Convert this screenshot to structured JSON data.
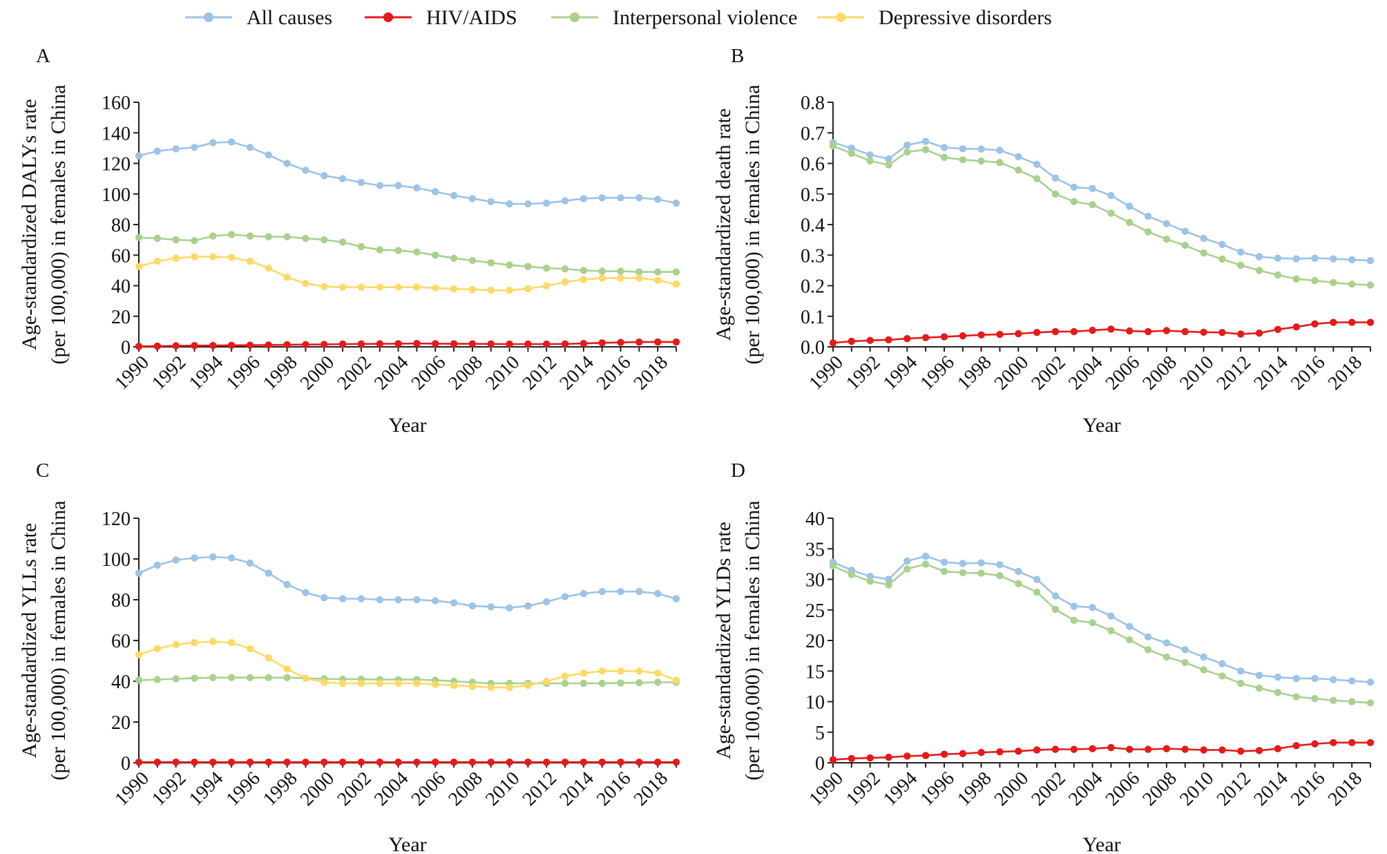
{
  "legend": [
    {
      "name": "All causes",
      "color": "#9dc3e6"
    },
    {
      "name": "HIV/AIDS",
      "color": "#e41a1c"
    },
    {
      "name": "Interpersonal violence",
      "color": "#a9d18e"
    },
    {
      "name": "Depressive disorders",
      "color": "#ffd966"
    }
  ],
  "chart_data": [
    {
      "panel": "A",
      "type": "line",
      "xlabel": "Year",
      "ylabel": [
        "Age-standardized DALYs rate",
        "(per 100,000) in females in China"
      ],
      "ylim": [
        0,
        160
      ],
      "ytick_step": 20,
      "ytick_decimals": 0,
      "x": [
        1990,
        1991,
        1992,
        1993,
        1994,
        1995,
        1996,
        1997,
        1998,
        1999,
        2000,
        2001,
        2002,
        2003,
        2004,
        2005,
        2006,
        2007,
        2008,
        2009,
        2010,
        2011,
        2012,
        2013,
        2014,
        2015,
        2016,
        2017,
        2018,
        2019
      ],
      "xtick_labels": [
        "1990",
        "1992",
        "1994",
        "1996",
        "1998",
        "2000",
        "2002",
        "2004",
        "2006",
        "2008",
        "2010",
        "2012",
        "2014",
        "2016",
        "2018"
      ],
      "series": [
        {
          "name": "All causes",
          "values": [
            125,
            128,
            129.5,
            130.5,
            133.5,
            134,
            130.5,
            125.5,
            120,
            115.5,
            112,
            110,
            107.5,
            105.5,
            105.5,
            104,
            101.5,
            99,
            97,
            95,
            93.5,
            93.5,
            94,
            95.5,
            97,
            97.5,
            97.5,
            97.5,
            96.5,
            94
          ]
        },
        {
          "name": "HIV/AIDS",
          "values": [
            0.3,
            0.5,
            0.7,
            0.8,
            0.9,
            1.0,
            1.1,
            1.2,
            1.4,
            1.5,
            1.6,
            1.8,
            1.9,
            2.0,
            2.1,
            2.2,
            2.1,
            2.0,
            2.0,
            1.9,
            1.8,
            1.8,
            1.8,
            1.9,
            2.2,
            2.6,
            2.9,
            3.1,
            3.2,
            3.2
          ]
        },
        {
          "name": "Interpersonal violence",
          "values": [
            71.5,
            71,
            70,
            69.5,
            72.5,
            73.5,
            72.5,
            72,
            72,
            71,
            70,
            68.5,
            65.5,
            63.5,
            63,
            62,
            60,
            58,
            56.5,
            55,
            53.5,
            52.5,
            51.5,
            51,
            50,
            49.5,
            49.5,
            49,
            49,
            49
          ]
        },
        {
          "name": "Depressive disorders",
          "values": [
            52.5,
            56,
            58,
            59,
            59,
            58.5,
            56,
            51.5,
            45.5,
            41.5,
            39.5,
            39,
            39,
            39,
            39,
            39,
            38.5,
            38,
            37.5,
            37,
            37,
            38,
            40,
            42.5,
            44,
            45,
            45,
            45,
            43.5,
            41
          ]
        }
      ]
    },
    {
      "panel": "B",
      "type": "line",
      "xlabel": "Year",
      "ylabel": [
        "Age-standardized death rate",
        "(per 100,000) in females in China"
      ],
      "ylim": [
        0,
        0.8
      ],
      "ytick_step": 0.1,
      "ytick_decimals": 1,
      "x": [
        1990,
        1991,
        1992,
        1993,
        1994,
        1995,
        1996,
        1997,
        1998,
        1999,
        2000,
        2001,
        2002,
        2003,
        2004,
        2005,
        2006,
        2007,
        2008,
        2009,
        2010,
        2011,
        2012,
        2013,
        2014,
        2015,
        2016,
        2017,
        2018,
        2019
      ],
      "xtick_labels": [
        "1990",
        "1992",
        "1994",
        "1996",
        "1998",
        "2000",
        "2002",
        "2004",
        "2006",
        "2008",
        "2010",
        "2012",
        "2014",
        "2016",
        "2018"
      ],
      "series": [
        {
          "name": "All causes",
          "values": [
            0.668,
            0.65,
            0.628,
            0.615,
            0.66,
            0.672,
            0.652,
            0.648,
            0.647,
            0.643,
            0.622,
            0.597,
            0.552,
            0.522,
            0.518,
            0.495,
            0.46,
            0.427,
            0.403,
            0.378,
            0.355,
            0.335,
            0.31,
            0.295,
            0.29,
            0.288,
            0.29,
            0.288,
            0.285,
            0.282
          ]
        },
        {
          "name": "HIV/AIDS",
          "values": [
            0.013,
            0.018,
            0.021,
            0.023,
            0.027,
            0.03,
            0.033,
            0.036,
            0.039,
            0.041,
            0.043,
            0.047,
            0.05,
            0.05,
            0.054,
            0.058,
            0.052,
            0.05,
            0.053,
            0.05,
            0.048,
            0.047,
            0.042,
            0.045,
            0.057,
            0.065,
            0.075,
            0.08,
            0.08,
            0.08
          ]
        },
        {
          "name": "Interpersonal violence",
          "values": [
            0.657,
            0.633,
            0.608,
            0.595,
            0.637,
            0.645,
            0.62,
            0.612,
            0.608,
            0.603,
            0.578,
            0.55,
            0.5,
            0.475,
            0.465,
            0.437,
            0.407,
            0.376,
            0.352,
            0.332,
            0.307,
            0.287,
            0.267,
            0.25,
            0.235,
            0.222,
            0.217,
            0.21,
            0.205,
            0.202
          ]
        }
      ]
    },
    {
      "panel": "C",
      "type": "line",
      "xlabel": "Year",
      "ylabel": [
        "Age-standardized YLLs rate",
        "(per 100,000) in females in China"
      ],
      "ylim": [
        0,
        120
      ],
      "ytick_step": 20,
      "ytick_decimals": 0,
      "x": [
        1990,
        1991,
        1992,
        1993,
        1994,
        1995,
        1996,
        1997,
        1998,
        1999,
        2000,
        2001,
        2002,
        2003,
        2004,
        2005,
        2006,
        2007,
        2008,
        2009,
        2010,
        2011,
        2012,
        2013,
        2014,
        2015,
        2016,
        2017,
        2018,
        2019
      ],
      "xtick_labels": [
        "1990",
        "1992",
        "1994",
        "1996",
        "1998",
        "2000",
        "2002",
        "2004",
        "2006",
        "2008",
        "2010",
        "2012",
        "2014",
        "2016",
        "2018"
      ],
      "series": [
        {
          "name": "All causes",
          "values": [
            93,
            97,
            99.5,
            100.5,
            101,
            100.5,
            98,
            93,
            87.5,
            83.5,
            81,
            80.5,
            80.5,
            80,
            80,
            80,
            79.5,
            78.5,
            77,
            76.5,
            76,
            77,
            79,
            81.5,
            83,
            84,
            84,
            84,
            83,
            80.5
          ]
        },
        {
          "name": "HIV/AIDS",
          "values": [
            0.3,
            0.3,
            0.3,
            0.3,
            0.3,
            0.3,
            0.3,
            0.3,
            0.3,
            0.3,
            0.3,
            0.3,
            0.3,
            0.3,
            0.3,
            0.3,
            0.3,
            0.3,
            0.3,
            0.3,
            0.3,
            0.3,
            0.3,
            0.3,
            0.3,
            0.3,
            0.3,
            0.3,
            0.3,
            0.3
          ]
        },
        {
          "name": "Interpersonal violence",
          "values": [
            40.5,
            40.8,
            41.2,
            41.5,
            41.8,
            41.8,
            41.8,
            41.8,
            41.8,
            41.5,
            41.2,
            41,
            41,
            40.8,
            40.8,
            40.8,
            40.5,
            40,
            39.5,
            39,
            39,
            39,
            39,
            39,
            39,
            39,
            39.2,
            39.3,
            39.5,
            39.5
          ]
        },
        {
          "name": "Depressive disorders",
          "values": [
            53,
            56,
            58,
            59,
            59.5,
            59,
            56,
            51.5,
            46,
            41.5,
            39.5,
            39,
            39,
            39,
            39,
            39,
            38.5,
            38,
            37.5,
            37,
            37,
            38,
            40,
            42.5,
            44,
            45,
            45,
            45,
            44,
            40.5
          ]
        }
      ]
    },
    {
      "panel": "D",
      "type": "line",
      "xlabel": "Year",
      "ylabel": [
        "Age-standardized YLDs rate",
        "(per 100,000) in females in China"
      ],
      "ylim": [
        0,
        40
      ],
      "ytick_step": 5,
      "ytick_decimals": 0,
      "x": [
        1990,
        1991,
        1992,
        1993,
        1994,
        1995,
        1996,
        1997,
        1998,
        1999,
        2000,
        2001,
        2002,
        2003,
        2004,
        2005,
        2006,
        2007,
        2008,
        2009,
        2010,
        2011,
        2012,
        2013,
        2014,
        2015,
        2016,
        2017,
        2018,
        2019
      ],
      "xtick_labels": [
        "1990",
        "1992",
        "1994",
        "1996",
        "1998",
        "2000",
        "2002",
        "2004",
        "2006",
        "2008",
        "2010",
        "2012",
        "2014",
        "2016",
        "2018"
      ],
      "series": [
        {
          "name": "All causes",
          "values": [
            32.8,
            31.5,
            30.5,
            30,
            33,
            33.8,
            32.8,
            32.6,
            32.7,
            32.4,
            31.3,
            30,
            27.3,
            25.6,
            25.4,
            24,
            22.3,
            20.6,
            19.6,
            18.5,
            17.3,
            16.2,
            15,
            14.3,
            14,
            13.8,
            13.8,
            13.6,
            13.4,
            13.2
          ]
        },
        {
          "name": "HIV/AIDS",
          "values": [
            0.5,
            0.7,
            0.8,
            0.9,
            1.1,
            1.2,
            1.4,
            1.5,
            1.7,
            1.8,
            1.9,
            2.1,
            2.2,
            2.2,
            2.3,
            2.5,
            2.2,
            2.2,
            2.3,
            2.2,
            2.1,
            2.1,
            1.9,
            2.0,
            2.3,
            2.8,
            3.1,
            3.3,
            3.3,
            3.3
          ]
        },
        {
          "name": "Interpersonal violence",
          "values": [
            32.2,
            30.8,
            29.7,
            29.1,
            31.7,
            32.5,
            31.3,
            31.1,
            31.0,
            30.6,
            29.3,
            27.9,
            25.1,
            23.3,
            22.9,
            21.6,
            20.1,
            18.5,
            17.3,
            16.4,
            15.2,
            14.2,
            13,
            12.2,
            11.5,
            10.8,
            10.5,
            10.2,
            10,
            9.8
          ]
        }
      ]
    }
  ]
}
